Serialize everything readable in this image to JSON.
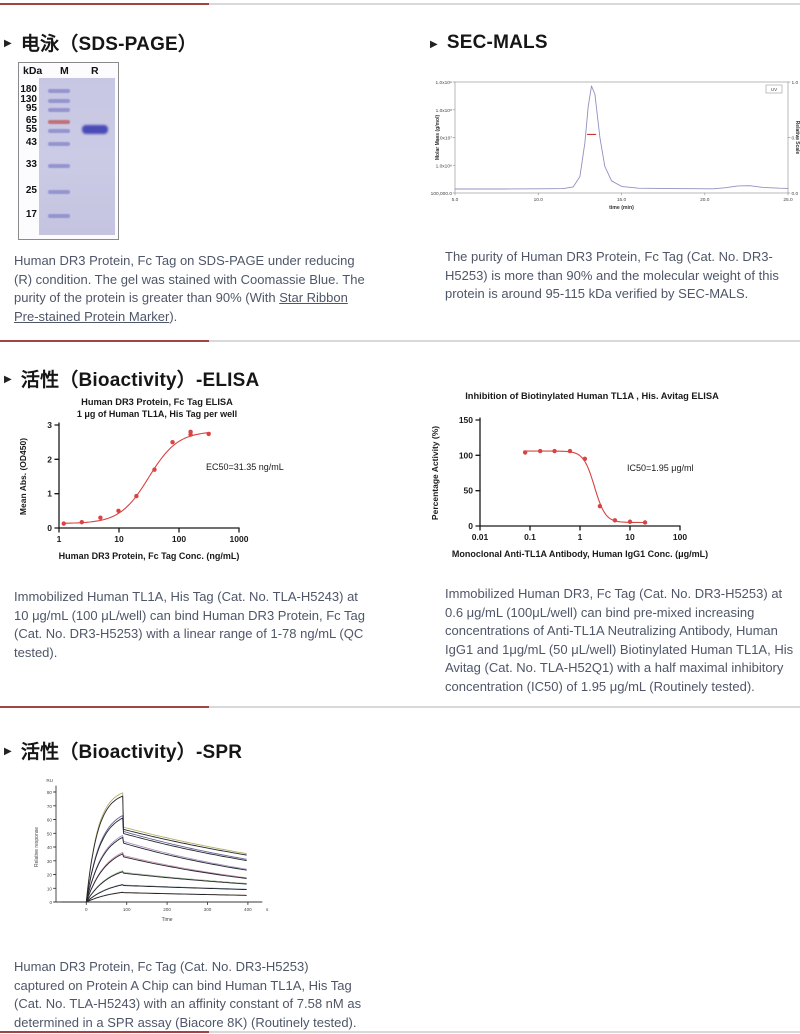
{
  "sections": {
    "sds_page": {
      "title": "电泳（SDS-PAGE）",
      "gel": {
        "unit_header": "kDa",
        "lane_m": "M",
        "lane_r": "R",
        "marker_color": "#8f8fcd",
        "markers": [
          {
            "kda": "180",
            "y": 28
          },
          {
            "kda": "130",
            "y": 38
          },
          {
            "kda": "95",
            "y": 47
          },
          {
            "kda": "65",
            "y": 59,
            "color": "#c06a6a"
          },
          {
            "kda": "55",
            "y": 68
          },
          {
            "kda": "43",
            "y": 81
          },
          {
            "kda": "33",
            "y": 103
          },
          {
            "kda": "25",
            "y": 129
          },
          {
            "kda": "17",
            "y": 153
          }
        ],
        "sample_band": {
          "y": 66,
          "color": "#4b4bb8"
        }
      },
      "caption_pre": "Human DR3 Protein, Fc Tag on SDS-PAGE under reducing (R) condition. The gel was stained with Coomassie Blue. The purity of the protein is greater than 90% (With ",
      "caption_link": "Star Ribbon Pre-stained Protein Marker",
      "caption_post": ")."
    },
    "sec_mals": {
      "title": "SEC-MALS",
      "caption": "The purity of Human DR3 Protein, Fc Tag (Cat. No. DR3-H5253) is more than 90% and the molecular weight of this protein is around 95-115 kDa verified by SEC-MALS."
    },
    "elisa": {
      "title": "活性（Bioactivity）-ELISA",
      "left_caption": "Immobilized Human TL1A, His Tag (Cat. No. TLA-H5243) at 10 μg/mL (100 μL/well) can bind Human DR3 Protein, Fc Tag (Cat. No. DR3-H5253) with a linear range of 1-78 ng/mL (QC tested).",
      "right_caption": "Immobilized Human DR3, Fc Tag (Cat. No. DR3-H5253) at 0.6 μg/mL (100μL/well) can bind pre-mixed increasing concentrations of Anti-TL1A Neutralizing Antibody, Human IgG1 and 1μg/mL (50 μL/well) Biotinylated Human TL1A, His Avitag (Cat. No. TLA-H52Q1) with a half maximal inhibitory concentration (IC50) of 1.95 μg/mL (Routinely tested)."
    },
    "spr": {
      "title": "活性（Bioactivity）-SPR",
      "caption": "Human DR3 Protein, Fc Tag (Cat. No. DR3-H5253) captured on Protein A Chip can bind Human TL1A, His Tag (Cat. No. TLA-H5243) with an affinity constant of 7.58 nM as determined in a SPR assay (Biacore 8K) (Routinely tested)."
    }
  },
  "chart_data": [
    {
      "type": "scatter",
      "name": "elisa-binding",
      "title": "Human DR3 Protein, Fc Tag ELISA",
      "subtitle": "1 μg of Human TL1A, His Tag per well",
      "xlabel": "Human DR3 Protein, Fc Tag Conc. (ng/mL)",
      "ylabel": "Mean Abs. (OD450)",
      "xscale": "log",
      "xlim": [
        1,
        1000
      ],
      "ylim": [
        0,
        3
      ],
      "xticks": [
        1,
        10,
        100,
        1000
      ],
      "xtick_labels": [
        "1",
        "10",
        "100",
        "1000"
      ],
      "yticks": [
        0,
        1,
        2,
        3
      ],
      "annotation": "EC50=31.35 ng/mL",
      "color": "#d84343",
      "points": [
        [
          1.2,
          0.13
        ],
        [
          2.4,
          0.17
        ],
        [
          4.9,
          0.3
        ],
        [
          9.8,
          0.5
        ],
        [
          19.5,
          0.93
        ],
        [
          39,
          1.7
        ],
        [
          78,
          2.5
        ],
        [
          156,
          2.72
        ],
        [
          156,
          2.8
        ],
        [
          312,
          2.74
        ]
      ],
      "fit": {
        "bottom": 0.13,
        "top": 2.82,
        "mid": 31.35,
        "hill": 1.8,
        "dir": "inc",
        "range": [
          1.15,
          330
        ]
      }
    },
    {
      "type": "scatter",
      "name": "elisa-inhibition",
      "title": "Inhibition of Biotinylated Human TL1A , His. Avitag ELISA",
      "subtitle": "",
      "xlabel": "Monoclonal Anti-TL1A Antibody, Human IgG1 Conc. (μg/mL)",
      "ylabel": "Percentage Activity (%)",
      "xscale": "log",
      "xlim": [
        0.01,
        100
      ],
      "ylim": [
        0,
        150
      ],
      "xticks": [
        0.01,
        0.1,
        1,
        10,
        100
      ],
      "xtick_labels": [
        "0.01",
        "0.1",
        "1",
        "10",
        "100"
      ],
      "yticks": [
        0,
        50,
        100,
        150
      ],
      "annotation": "IC50=1.95 μg/ml",
      "color": "#d84343",
      "points": [
        [
          0.08,
          104
        ],
        [
          0.16,
          106
        ],
        [
          0.31,
          106
        ],
        [
          0.63,
          106
        ],
        [
          1.25,
          95
        ],
        [
          2.5,
          28
        ],
        [
          5,
          8
        ],
        [
          10,
          6
        ],
        [
          20,
          5
        ]
      ],
      "fit": {
        "bottom": 5,
        "top": 106,
        "mid": 1.95,
        "hill": 4,
        "dir": "dec",
        "range": [
          0.075,
          21
        ]
      }
    },
    {
      "type": "line",
      "name": "sec-mals",
      "xlabel": "time (min)",
      "ylabel": "Molar Mass (g/mol)",
      "ylabel_right": "Relative Scale",
      "legend": "UV",
      "xlim": [
        5,
        25
      ],
      "xtick_values": [
        5,
        10,
        15,
        20,
        25
      ],
      "xtick_labels": [
        "5.0",
        "10.0",
        "15.0",
        "20.0",
        "25.0"
      ],
      "ytick_labels_left": [
        "1.0x10⁹",
        "1.0x10⁸",
        "1.0x10⁷",
        "1.0x10⁶",
        "100,000.0"
      ],
      "ytick_labels_right": [
        "1.0",
        "0.5",
        "0.0"
      ],
      "line_color": "#9090c0",
      "uv_trace": [
        [
          5,
          0
        ],
        [
          8,
          0
        ],
        [
          10,
          0.002
        ],
        [
          11.5,
          0.004
        ],
        [
          12.1,
          0.02
        ],
        [
          12.5,
          0.12
        ],
        [
          12.8,
          0.45
        ],
        [
          13.0,
          0.8
        ],
        [
          13.2,
          1.0
        ],
        [
          13.4,
          0.92
        ],
        [
          13.7,
          0.5
        ],
        [
          14.0,
          0.22
        ],
        [
          14.4,
          0.08
        ],
        [
          15.0,
          0.025
        ],
        [
          16,
          0.008
        ],
        [
          18,
          0.004
        ],
        [
          20.5,
          0.002
        ],
        [
          21.2,
          0.012
        ],
        [
          22.0,
          0.03
        ],
        [
          22.7,
          0.032
        ],
        [
          23.5,
          0.016
        ],
        [
          24.5,
          0.008
        ],
        [
          25,
          0.006
        ]
      ],
      "mass_marker": {
        "x1": 12.95,
        "x2": 13.45,
        "y_rel": 0.53,
        "color": "#cc3333"
      }
    },
    {
      "type": "line",
      "name": "spr-sensorgram",
      "y_unit": "RU",
      "ylabel": "Relative response",
      "xlabel": "Time",
      "x_unit": "s",
      "xlim": [
        -75,
        430
      ],
      "ylim": [
        0,
        80
      ],
      "xtick_values": [
        0,
        100,
        200,
        300,
        400
      ],
      "xtick_labels": [
        "0",
        "100",
        "200",
        "300",
        "400"
      ],
      "ytick_values": [
        0,
        10,
        20,
        30,
        40,
        50,
        60,
        70,
        80
      ],
      "t_on": 0,
      "t_off": 90,
      "t_end": 400,
      "fit_color": "#26262e",
      "series": [
        {
          "peak": 77,
          "post": 53,
          "end": 34,
          "color": "#b2aa5e"
        },
        {
          "peak": 61,
          "post": 50,
          "end": 30,
          "color": "#5e5e92"
        },
        {
          "peak": 47,
          "post": 43,
          "end": 23,
          "color": "#a08cc0"
        },
        {
          "peak": 35,
          "post": 33,
          "end": 17,
          "color": "#c08aa4"
        },
        {
          "peak": 22,
          "post": 21,
          "end": 13,
          "color": "#9ab390"
        },
        {
          "peak": 12.5,
          "post": 12,
          "end": 9,
          "color": "#8aa6b3"
        },
        {
          "peak": 7,
          "post": 6.8,
          "end": 4.8,
          "color": "#b39a7a"
        }
      ]
    }
  ]
}
